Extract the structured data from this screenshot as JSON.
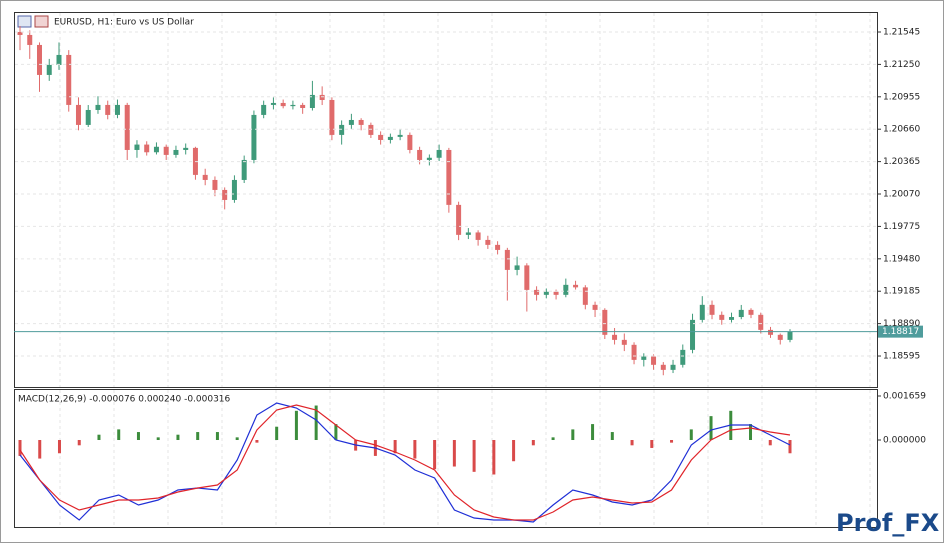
{
  "chart_data": [
    {
      "type": "candlestick",
      "title": "EURUSD, H1:  Euro vs US Dollar",
      "up_color": "#3f9a7a",
      "down_color": "#e06b6b",
      "ylim": [
        1.18313,
        1.21727
      ],
      "yticks": [
        1.21545,
        {
          "value": 1.2125,
          "label": "1.21250"
        },
        1.20955,
        {
          "value": 1.2066,
          "label": "1.20660"
        },
        1.20365,
        {
          "value": 1.2007,
          "label": "1.20070"
        },
        1.19775,
        {
          "value": 1.1948,
          "label": "1.19480"
        },
        1.19185,
        {
          "value": 1.1889,
          "label": "1.18890"
        },
        1.18595
      ],
      "grid": true,
      "price_line": {
        "value": 1.18817,
        "color": "#4f9c9c"
      },
      "ohlc": [
        [
          1.21545,
          1.216,
          1.2138,
          1.21518
        ],
        [
          1.21518,
          1.2156,
          1.213,
          1.21427
        ],
        [
          1.21427,
          1.2145,
          1.21,
          1.21154
        ],
        [
          1.21154,
          1.213,
          1.211,
          1.21245
        ],
        [
          1.21245,
          1.2145,
          1.212,
          1.21336
        ],
        [
          1.21336,
          1.2138,
          1.2082,
          1.20881
        ],
        [
          1.20881,
          1.2095,
          1.2065,
          1.20699
        ],
        [
          1.20699,
          1.2088,
          1.2068,
          1.20835
        ],
        [
          1.20835,
          1.2096,
          1.208,
          1.20881
        ],
        [
          1.20881,
          1.2092,
          1.2075,
          1.2079
        ],
        [
          1.2079,
          1.2093,
          1.2076,
          1.20881
        ],
        [
          1.20881,
          1.209,
          1.2038,
          1.20471
        ],
        [
          1.20471,
          1.2056,
          1.204,
          1.2052
        ],
        [
          1.2052,
          1.2055,
          1.2042,
          1.2045
        ],
        [
          1.2045,
          1.2054,
          1.2043,
          1.205
        ],
        [
          1.205,
          1.2052,
          1.2038,
          1.20426
        ],
        [
          1.20426,
          1.2051,
          1.204,
          1.20471
        ],
        [
          1.20471,
          1.2053,
          1.2043,
          1.2049
        ],
        [
          1.2049,
          1.205,
          1.202,
          1.20244
        ],
        [
          1.20244,
          1.203,
          1.2015,
          1.20198
        ],
        [
          1.20198,
          1.2023,
          1.2005,
          1.20107
        ],
        [
          1.20107,
          1.2013,
          1.1993,
          1.20016
        ],
        [
          1.20016,
          1.2024,
          1.1999,
          1.20198
        ],
        [
          1.20198,
          1.2042,
          1.2017,
          1.2038
        ],
        [
          1.2038,
          1.2083,
          1.2035,
          1.2079
        ],
        [
          1.2079,
          1.2092,
          1.2076,
          1.20881
        ],
        [
          1.20881,
          1.2095,
          1.2084,
          1.20899
        ],
        [
          1.20899,
          1.2093,
          1.2085,
          1.2087
        ],
        [
          1.2087,
          1.2092,
          1.2084,
          1.20881
        ],
        [
          1.20881,
          1.209,
          1.208,
          1.20853
        ],
        [
          1.20853,
          1.211,
          1.2083,
          1.20972
        ],
        [
          1.20972,
          1.2105,
          1.2088,
          1.20926
        ],
        [
          1.20926,
          1.2095,
          1.2056,
          1.20608
        ],
        [
          1.20608,
          1.2074,
          1.2052,
          1.20699
        ],
        [
          1.20699,
          1.208,
          1.2066,
          1.20744
        ],
        [
          1.20744,
          1.2076,
          1.2065,
          1.20699
        ],
        [
          1.20699,
          1.2072,
          1.2058,
          1.20608
        ],
        [
          1.20608,
          1.2064,
          1.2052,
          1.20562
        ],
        [
          1.20562,
          1.2062,
          1.2053,
          1.2059
        ],
        [
          1.2059,
          1.2066,
          1.2056,
          1.20608
        ],
        [
          1.20608,
          1.2063,
          1.2044,
          1.20471
        ],
        [
          1.20471,
          1.205,
          1.2034,
          1.2038
        ],
        [
          1.2038,
          1.2043,
          1.2033,
          1.204
        ],
        [
          1.204,
          1.2052,
          1.2037,
          1.20471
        ],
        [
          1.20471,
          1.2049,
          1.199,
          1.19971
        ],
        [
          1.19971,
          1.2,
          1.1965,
          1.19698
        ],
        [
          1.19698,
          1.1976,
          1.1966,
          1.1972
        ],
        [
          1.1972,
          1.1974,
          1.196,
          1.19652
        ],
        [
          1.19652,
          1.1969,
          1.1957,
          1.19607
        ],
        [
          1.19607,
          1.1964,
          1.1952,
          1.19561
        ],
        [
          1.19561,
          1.1958,
          1.191,
          1.19379
        ],
        [
          1.19379,
          1.195,
          1.1933,
          1.1942
        ],
        [
          1.1942,
          1.1944,
          1.19,
          1.19197
        ],
        [
          1.19197,
          1.1923,
          1.191,
          1.19152
        ],
        [
          1.19152,
          1.1921,
          1.1912,
          1.1918
        ],
        [
          1.1918,
          1.192,
          1.1911,
          1.19152
        ],
        [
          1.19152,
          1.193,
          1.1913,
          1.19243
        ],
        [
          1.19243,
          1.1928,
          1.192,
          1.1922
        ],
        [
          1.1922,
          1.1924,
          1.1902,
          1.19061
        ],
        [
          1.19061,
          1.1909,
          1.1895,
          1.19015
        ],
        [
          1.19015,
          1.1903,
          1.1875,
          1.18788
        ],
        [
          1.18788,
          1.1885,
          1.187,
          1.18742
        ],
        [
          1.18742,
          1.188,
          1.1864,
          1.18697
        ],
        [
          1.18697,
          1.1872,
          1.1852,
          1.1856
        ],
        [
          1.1856,
          1.1862,
          1.185,
          1.1859
        ],
        [
          1.1859,
          1.1861,
          1.1847,
          1.18515
        ],
        [
          1.18515,
          1.1854,
          1.1842,
          1.18469
        ],
        [
          1.18469,
          1.1856,
          1.1844,
          1.18515
        ],
        [
          1.18515,
          1.187,
          1.1849,
          1.18651
        ],
        [
          1.18651,
          1.1898,
          1.1862,
          1.18924
        ],
        [
          1.18924,
          1.1914,
          1.189,
          1.19061
        ],
        [
          1.19061,
          1.191,
          1.1893,
          1.1897
        ],
        [
          1.1897,
          1.19,
          1.1888,
          1.18924
        ],
        [
          1.18924,
          1.1899,
          1.189,
          1.1895
        ],
        [
          1.1895,
          1.1906,
          1.1893,
          1.19015
        ],
        [
          1.19015,
          1.1903,
          1.1894,
          1.1897
        ],
        [
          1.1897,
          1.1899,
          1.188,
          1.18833
        ],
        [
          1.18833,
          1.1886,
          1.1876,
          1.18788
        ],
        [
          1.18788,
          1.188,
          1.187,
          1.18742
        ],
        [
          1.18742,
          1.1884,
          1.1872,
          1.18817
        ]
      ]
    },
    {
      "type": "macd",
      "title": "MACD(12,26,9) -0.000076 0.000240 -0.000316",
      "ylim": [
        -0.00328,
        0.001923
      ],
      "yticks": [
        0.001659,
        {
          "value": 0,
          "label": "0.000000"
        }
      ],
      "hist_up_color": "#3c8c3c",
      "hist_down_color": "#d94a4a",
      "histogram": [
        -0.0006,
        -0.0007,
        -0.0005,
        -0.0002,
        0.0002,
        0.0004,
        0.0003,
        0.0001,
        0.0002,
        0.0003,
        0.0003,
        0.0001,
        -0.0001,
        0.0005,
        0.0011,
        0.0013,
        0.0006,
        -0.0004,
        -0.0006,
        -0.0005,
        -0.0007,
        -0.0011,
        -0.001,
        -0.0012,
        -0.0013,
        -0.0008,
        -0.0002,
        0.0001,
        0.0004,
        0.0006,
        0.0003,
        -0.0002,
        -0.0003,
        -0.0001,
        0.0004,
        0.0009,
        0.0011,
        0.0006,
        -0.0002,
        -0.0005
      ],
      "macd": {
        "color": "#1f2fd6",
        "values": [
          -0.000566,
          -0.001508,
          -0.002451,
          -0.003016,
          -0.002262,
          -0.002074,
          -0.002451,
          -0.002262,
          -0.001885,
          -0.00181,
          -0.001885,
          -0.000754,
          0.000943,
          0.001395,
          0.001206,
          0.000754,
          0,
          -0.000189,
          -0.000302,
          -0.000566,
          -0.001131,
          -0.001433,
          -0.002639,
          -0.002941,
          -0.003016,
          -0.003016,
          -0.003091,
          -0.002451,
          -0.001885,
          -0.002074,
          -0.002337,
          -0.002451,
          -0.002262,
          -0.001508,
          -0.000189,
          0.000377,
          0.000566,
          0.000566,
          0.000189,
          -0.000189
        ]
      },
      "signal": {
        "color": "#e0242a",
        "values": [
          -0.000377,
          -0.001508,
          -0.002262,
          -0.002639,
          -0.002451,
          -0.002262,
          -0.002262,
          -0.002187,
          -0.00196,
          -0.00181,
          -0.001697,
          -0.001131,
          0.000377,
          0.001131,
          0.00132,
          0.001131,
          0.000566,
          0,
          -0.000189,
          -0.000452,
          -0.000754,
          -0.001131,
          -0.002074,
          -0.002639,
          -0.002903,
          -0.003016,
          -0.003016,
          -0.002714,
          -0.002262,
          -0.002149,
          -0.002262,
          -0.002375,
          -0.002337,
          -0.001885,
          -0.000754,
          0,
          0.000377,
          0.000452,
          0.000302,
          0.000189
        ]
      }
    }
  ],
  "watermark": "Prof_FX"
}
